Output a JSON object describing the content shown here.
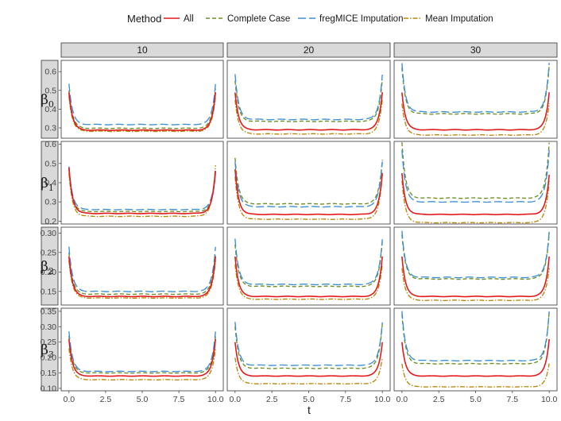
{
  "legend": {
    "title": "Method",
    "items": [
      {
        "name": "All",
        "color": "#e31a1c",
        "dash": "solid"
      },
      {
        "name": "Complete Case",
        "color": "#6b8e23",
        "dash": "dashed"
      },
      {
        "name": "fregMICE Imputation",
        "color": "#3a8fd6",
        "dash": "longdash"
      },
      {
        "name": "Mean Imputation",
        "color": "#b8860b",
        "dash": "dotdash"
      }
    ]
  },
  "xlabel": "t",
  "col_labels": [
    "10",
    "20",
    "30"
  ],
  "row_labels": [
    {
      "symbol": "β",
      "sub": "0"
    },
    {
      "symbol": "β",
      "sub": "1"
    },
    {
      "symbol": "β",
      "sub": "2"
    },
    {
      "symbol": "β",
      "sub": "3"
    }
  ],
  "chart_data": {
    "type": "line",
    "facet": "grid",
    "xlabel": "t",
    "x_range": [
      0,
      10
    ],
    "x_ticks": [
      "0.0",
      "2.5",
      "5.0",
      "7.5",
      "10.0"
    ],
    "rows": [
      {
        "label": "β0",
        "ylim": [
          0.245,
          0.66
        ],
        "y_ticks": [
          "0.3",
          "0.4",
          "0.5",
          "0.6"
        ],
        "y_tick_values": [
          0.3,
          0.4,
          0.5,
          0.6
        ],
        "panels": [
          {
            "col": "10",
            "series": [
              {
                "name": "All",
                "edge_left": 0.49,
                "edge_right": 0.49,
                "plateau": 0.288
              },
              {
                "name": "Complete Case",
                "edge_left": 0.5,
                "edge_right": 0.51,
                "plateau": 0.298
              },
              {
                "name": "fregMICE Imputation",
                "edge_left": 0.535,
                "edge_right": 0.535,
                "plateau": 0.318
              },
              {
                "name": "Mean Imputation",
                "edge_left": 0.47,
                "edge_right": 0.47,
                "plateau": 0.282
              }
            ]
          },
          {
            "col": "20",
            "series": [
              {
                "name": "All",
                "edge_left": 0.49,
                "edge_right": 0.49,
                "plateau": 0.29
              },
              {
                "name": "Complete Case",
                "edge_left": 0.55,
                "edge_right": 0.56,
                "plateau": 0.335
              },
              {
                "name": "fregMICE Imputation",
                "edge_left": 0.585,
                "edge_right": 0.585,
                "plateau": 0.345
              },
              {
                "name": "Mean Imputation",
                "edge_left": 0.45,
                "edge_right": 0.45,
                "plateau": 0.268
              }
            ]
          },
          {
            "col": "30",
            "series": [
              {
                "name": "All",
                "edge_left": 0.49,
                "edge_right": 0.49,
                "plateau": 0.29
              },
              {
                "name": "Complete Case",
                "edge_left": 0.62,
                "edge_right": 0.63,
                "plateau": 0.375
              },
              {
                "name": "fregMICE Imputation",
                "edge_left": 0.645,
                "edge_right": 0.645,
                "plateau": 0.385
              },
              {
                "name": "Mean Imputation",
                "edge_left": 0.43,
                "edge_right": 0.43,
                "plateau": 0.262
              }
            ]
          }
        ]
      },
      {
        "label": "β1",
        "ylim": [
          0.185,
          0.615
        ],
        "y_ticks": [
          "0.2",
          "0.3",
          "0.4",
          "0.5",
          "0.6"
        ],
        "y_tick_values": [
          0.2,
          0.3,
          0.4,
          0.5,
          0.6
        ],
        "panels": [
          {
            "col": "10",
            "series": [
              {
                "name": "All",
                "edge_left": 0.48,
                "edge_right": 0.46,
                "plateau": 0.24
              },
              {
                "name": "Complete Case",
                "edge_left": 0.47,
                "edge_right": 0.45,
                "plateau": 0.25
              },
              {
                "name": "fregMICE Imputation",
                "edge_left": 0.485,
                "edge_right": 0.465,
                "plateau": 0.26
              },
              {
                "name": "Mean Imputation",
                "edge_left": 0.45,
                "edge_right": 0.49,
                "plateau": 0.225
              }
            ]
          },
          {
            "col": "20",
            "series": [
              {
                "name": "All",
                "edge_left": 0.47,
                "edge_right": 0.45,
                "plateau": 0.235
              },
              {
                "name": "Complete Case",
                "edge_left": 0.53,
                "edge_right": 0.52,
                "plateau": 0.29
              },
              {
                "name": "fregMICE Imputation",
                "edge_left": 0.51,
                "edge_right": 0.51,
                "plateau": 0.275
              },
              {
                "name": "Mean Imputation",
                "edge_left": 0.43,
                "edge_right": 0.44,
                "plateau": 0.21
              }
            ]
          },
          {
            "col": "30",
            "series": [
              {
                "name": "All",
                "edge_left": 0.45,
                "edge_right": 0.44,
                "plateau": 0.235
              },
              {
                "name": "Complete Case",
                "edge_left": 0.61,
                "edge_right": 0.61,
                "plateau": 0.32
              },
              {
                "name": "fregMICE Imputation",
                "edge_left": 0.57,
                "edge_right": 0.57,
                "plateau": 0.3
              },
              {
                "name": "Mean Imputation",
                "edge_left": 0.41,
                "edge_right": 0.41,
                "plateau": 0.192
              }
            ]
          }
        ]
      },
      {
        "label": "β2",
        "ylim": [
          0.115,
          0.315
        ],
        "y_ticks": [
          "0.15",
          "0.20",
          "0.25",
          "0.30"
        ],
        "y_tick_values": [
          0.15,
          0.2,
          0.25,
          0.3
        ],
        "panels": [
          {
            "col": "10",
            "series": [
              {
                "name": "All",
                "edge_left": 0.24,
                "edge_right": 0.24,
                "plateau": 0.137
              },
              {
                "name": "Complete Case",
                "edge_left": 0.25,
                "edge_right": 0.25,
                "plateau": 0.143
              },
              {
                "name": "fregMICE Imputation",
                "edge_left": 0.265,
                "edge_right": 0.265,
                "plateau": 0.15
              },
              {
                "name": "Mean Imputation",
                "edge_left": 0.23,
                "edge_right": 0.23,
                "plateau": 0.133
              }
            ]
          },
          {
            "col": "20",
            "series": [
              {
                "name": "All",
                "edge_left": 0.24,
                "edge_right": 0.24,
                "plateau": 0.137
              },
              {
                "name": "Complete Case",
                "edge_left": 0.27,
                "edge_right": 0.28,
                "plateau": 0.163
              },
              {
                "name": "fregMICE Imputation",
                "edge_left": 0.285,
                "edge_right": 0.285,
                "plateau": 0.168
              },
              {
                "name": "Mean Imputation",
                "edge_left": 0.22,
                "edge_right": 0.22,
                "plateau": 0.13
              }
            ]
          },
          {
            "col": "30",
            "series": [
              {
                "name": "All",
                "edge_left": 0.24,
                "edge_right": 0.24,
                "plateau": 0.137
              },
              {
                "name": "Complete Case",
                "edge_left": 0.295,
                "edge_right": 0.3,
                "plateau": 0.182
              },
              {
                "name": "fregMICE Imputation",
                "edge_left": 0.305,
                "edge_right": 0.305,
                "plateau": 0.186
              },
              {
                "name": "Mean Imputation",
                "edge_left": 0.21,
                "edge_right": 0.21,
                "plateau": 0.127
              }
            ]
          }
        ]
      },
      {
        "label": "β3",
        "ylim": [
          0.092,
          0.36
        ],
        "y_ticks": [
          "0.10",
          "0.15",
          "0.20",
          "0.25",
          "0.30",
          "0.35"
        ],
        "y_tick_values": [
          0.1,
          0.15,
          0.2,
          0.25,
          0.3,
          0.35
        ],
        "panels": [
          {
            "col": "10",
            "series": [
              {
                "name": "All",
                "edge_left": 0.26,
                "edge_right": 0.26,
                "plateau": 0.14
              },
              {
                "name": "Complete Case",
                "edge_left": 0.27,
                "edge_right": 0.27,
                "plateau": 0.15
              },
              {
                "name": "fregMICE Imputation",
                "edge_left": 0.285,
                "edge_right": 0.285,
                "plateau": 0.155
              },
              {
                "name": "Mean Imputation",
                "edge_left": 0.23,
                "edge_right": 0.23,
                "plateau": 0.128
              }
            ]
          },
          {
            "col": "20",
            "series": [
              {
                "name": "All",
                "edge_left": 0.25,
                "edge_right": 0.25,
                "plateau": 0.14
              },
              {
                "name": "Complete Case",
                "edge_left": 0.3,
                "edge_right": 0.31,
                "plateau": 0.165
              },
              {
                "name": "fregMICE Imputation",
                "edge_left": 0.315,
                "edge_right": 0.315,
                "plateau": 0.175
              },
              {
                "name": "Mean Imputation",
                "edge_left": 0.2,
                "edge_right": 0.2,
                "plateau": 0.115
              }
            ]
          },
          {
            "col": "30",
            "series": [
              {
                "name": "All",
                "edge_left": 0.25,
                "edge_right": 0.26,
                "plateau": 0.14
              },
              {
                "name": "Complete Case",
                "edge_left": 0.34,
                "edge_right": 0.35,
                "plateau": 0.18
              },
              {
                "name": "fregMICE Imputation",
                "edge_left": 0.35,
                "edge_right": 0.35,
                "plateau": 0.19
              },
              {
                "name": "Mean Imputation",
                "edge_left": 0.18,
                "edge_right": 0.18,
                "plateau": 0.105
              }
            ]
          }
        ]
      }
    ]
  }
}
